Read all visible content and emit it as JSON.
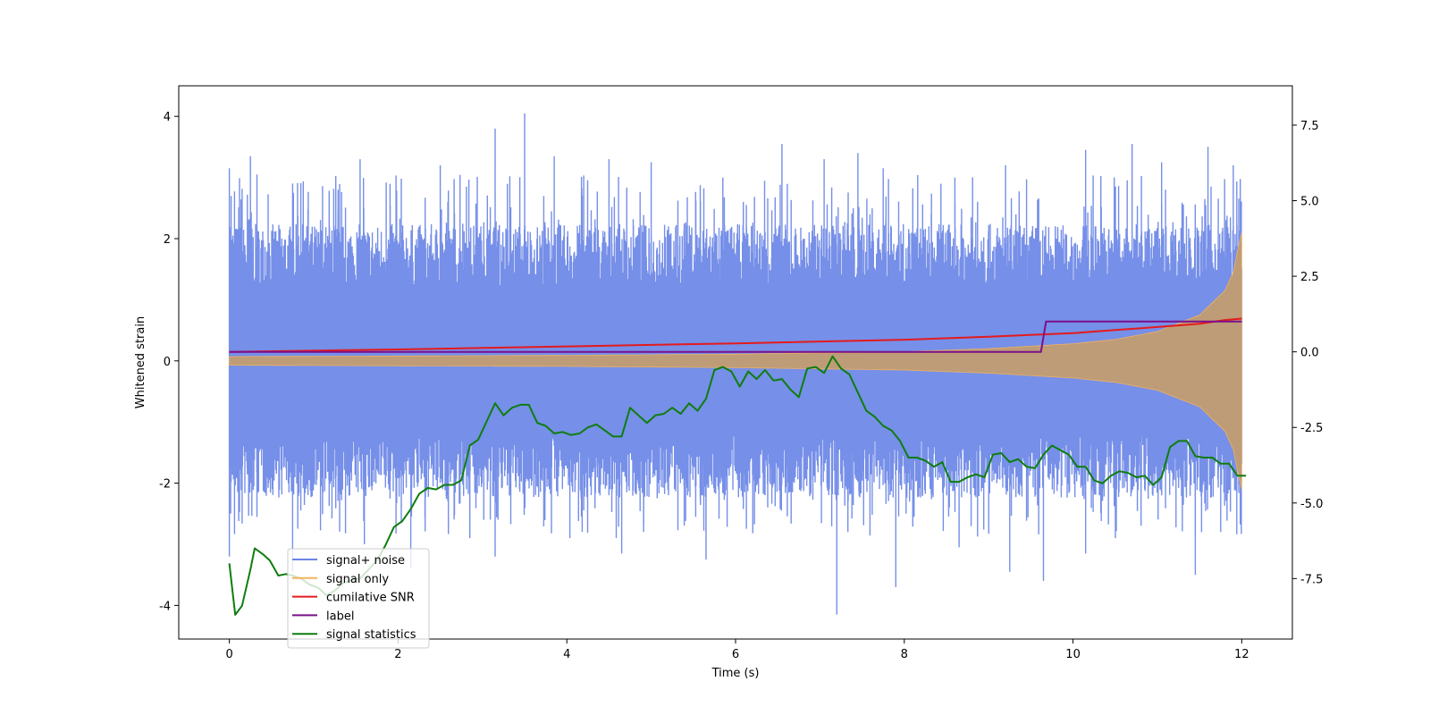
{
  "chart_data": {
    "type": "line",
    "xlabel": "Time (s)",
    "ylabel": "Whitened strain",
    "ylabel_right": "",
    "xlim": [
      -0.6,
      12.6
    ],
    "ylim": [
      -4.55,
      4.5
    ],
    "ylim_right": [
      -9.5,
      8.8
    ],
    "x_ticks": [
      "0",
      "2",
      "4",
      "6",
      "8",
      "10",
      "12"
    ],
    "y_ticks": [
      "-4",
      "-2",
      "0",
      "2",
      "4"
    ],
    "y_right_ticks": [
      "-7.5",
      "-5.0",
      "-2.5",
      "0.0",
      "2.5",
      "5.0",
      "7.5"
    ],
    "legend_position": "lower-left",
    "series": [
      {
        "name": "signal+ noise",
        "color": "#6a85e6",
        "kind": "noise_band",
        "axis": "left",
        "x_range": [
          0,
          12
        ],
        "band_upper_typical": 1.6,
        "band_lower_typical": -1.6,
        "peaks": [
          [
            0.0,
            3.15
          ],
          [
            0.25,
            3.35
          ],
          [
            0.75,
            2.9
          ],
          [
            1.55,
            3.3
          ],
          [
            2.5,
            3.2
          ],
          [
            3.15,
            3.8
          ],
          [
            3.5,
            4.05
          ],
          [
            3.85,
            3.35
          ],
          [
            4.5,
            3.3
          ],
          [
            5.0,
            3.25
          ],
          [
            5.85,
            3.0
          ],
          [
            6.55,
            3.55
          ],
          [
            7.05,
            3.3
          ],
          [
            7.45,
            3.4
          ],
          [
            7.75,
            3.15
          ],
          [
            8.6,
            3.0
          ],
          [
            9.2,
            3.2
          ],
          [
            10.15,
            3.45
          ],
          [
            10.7,
            3.55
          ],
          [
            11.05,
            3.25
          ],
          [
            11.6,
            3.5
          ],
          [
            11.9,
            3.2
          ]
        ],
        "troughs": [
          [
            0.0,
            -3.2
          ],
          [
            0.75,
            -3.45
          ],
          [
            1.6,
            -3.0
          ],
          [
            2.15,
            -3.4
          ],
          [
            2.85,
            -2.9
          ],
          [
            3.15,
            -3.2
          ],
          [
            4.65,
            -3.15
          ],
          [
            5.65,
            -3.25
          ],
          [
            7.2,
            -4.15
          ],
          [
            7.9,
            -3.7
          ],
          [
            8.65,
            -3.05
          ],
          [
            9.25,
            -3.45
          ],
          [
            9.65,
            -3.6
          ],
          [
            10.15,
            -3.15
          ],
          [
            11.45,
            -3.5
          ],
          [
            11.75,
            -2.8
          ]
        ]
      },
      {
        "name": "signal only",
        "color": "#f5b35c",
        "kind": "chirp_envelope",
        "axis": "left",
        "envelope": [
          [
            0.0,
            0.07
          ],
          [
            2.0,
            0.08
          ],
          [
            4.0,
            0.09
          ],
          [
            6.0,
            0.11
          ],
          [
            8.0,
            0.15
          ],
          [
            9.0,
            0.2
          ],
          [
            10.0,
            0.28
          ],
          [
            10.5,
            0.35
          ],
          [
            11.0,
            0.48
          ],
          [
            11.5,
            0.75
          ],
          [
            11.8,
            1.15
          ],
          [
            11.9,
            1.45
          ],
          [
            11.95,
            1.8
          ],
          [
            12.0,
            2.1
          ]
        ]
      },
      {
        "name": "cumilative SNR",
        "color": "#e41a1c",
        "axis": "right",
        "points": [
          [
            0.0,
            0.0
          ],
          [
            2.0,
            0.08
          ],
          [
            4.0,
            0.18
          ],
          [
            6.0,
            0.28
          ],
          [
            8.0,
            0.4
          ],
          [
            9.0,
            0.5
          ],
          [
            10.0,
            0.62
          ],
          [
            10.5,
            0.72
          ],
          [
            11.0,
            0.82
          ],
          [
            11.5,
            0.93
          ],
          [
            11.8,
            1.05
          ],
          [
            12.0,
            1.1
          ]
        ]
      },
      {
        "name": "label",
        "color": "#7b0f8a",
        "axis": "right",
        "points": [
          [
            0.0,
            0.0
          ],
          [
            9.62,
            0.0
          ],
          [
            9.68,
            1.0
          ],
          [
            12.0,
            1.0
          ]
        ]
      },
      {
        "name": "signal statistics",
        "color": "#0e7d0e",
        "axis": "right",
        "points": [
          [
            0.0,
            -7.0
          ],
          [
            0.07,
            -8.7
          ],
          [
            0.15,
            -8.4
          ],
          [
            0.25,
            -7.2
          ],
          [
            0.3,
            -6.5
          ],
          [
            0.4,
            -6.7
          ],
          [
            0.48,
            -6.9
          ],
          [
            0.58,
            -7.4
          ],
          [
            0.67,
            -7.35
          ],
          [
            0.75,
            -7.4
          ],
          [
            0.85,
            -7.5
          ],
          [
            0.95,
            -7.7
          ],
          [
            1.05,
            -7.8
          ],
          [
            1.15,
            -8.05
          ],
          [
            1.25,
            -7.9
          ],
          [
            1.35,
            -7.65
          ],
          [
            1.45,
            -7.55
          ],
          [
            1.55,
            -7.5
          ],
          [
            1.65,
            -7.2
          ],
          [
            1.75,
            -6.9
          ],
          [
            1.85,
            -6.4
          ],
          [
            1.95,
            -5.8
          ],
          [
            2.05,
            -5.6
          ],
          [
            2.15,
            -5.2
          ],
          [
            2.25,
            -4.7
          ],
          [
            2.35,
            -4.5
          ],
          [
            2.45,
            -4.55
          ],
          [
            2.55,
            -4.4
          ],
          [
            2.65,
            -4.4
          ],
          [
            2.75,
            -4.25
          ],
          [
            2.85,
            -3.1
          ],
          [
            2.95,
            -2.9
          ],
          [
            3.05,
            -2.3
          ],
          [
            3.15,
            -1.7
          ],
          [
            3.25,
            -2.1
          ],
          [
            3.35,
            -1.85
          ],
          [
            3.45,
            -1.75
          ],
          [
            3.55,
            -1.75
          ],
          [
            3.65,
            -2.35
          ],
          [
            3.75,
            -2.45
          ],
          [
            3.85,
            -2.7
          ],
          [
            3.95,
            -2.65
          ],
          [
            4.05,
            -2.75
          ],
          [
            4.15,
            -2.7
          ],
          [
            4.25,
            -2.5
          ],
          [
            4.35,
            -2.4
          ],
          [
            4.45,
            -2.6
          ],
          [
            4.55,
            -2.8
          ],
          [
            4.65,
            -2.8
          ],
          [
            4.75,
            -1.85
          ],
          [
            4.85,
            -2.1
          ],
          [
            4.95,
            -2.35
          ],
          [
            5.05,
            -2.1
          ],
          [
            5.15,
            -2.05
          ],
          [
            5.25,
            -1.85
          ],
          [
            5.35,
            -2.05
          ],
          [
            5.45,
            -1.7
          ],
          [
            5.55,
            -1.95
          ],
          [
            5.65,
            -1.55
          ],
          [
            5.75,
            -0.6
          ],
          [
            5.85,
            -0.5
          ],
          [
            5.95,
            -0.65
          ],
          [
            6.05,
            -1.15
          ],
          [
            6.15,
            -0.65
          ],
          [
            6.25,
            -0.9
          ],
          [
            6.35,
            -0.6
          ],
          [
            6.45,
            -0.95
          ],
          [
            6.55,
            -0.9
          ],
          [
            6.65,
            -1.25
          ],
          [
            6.75,
            -1.5
          ],
          [
            6.85,
            -0.55
          ],
          [
            6.95,
            -0.5
          ],
          [
            7.05,
            -0.7
          ],
          [
            7.15,
            -0.15
          ],
          [
            7.25,
            -0.55
          ],
          [
            7.35,
            -0.75
          ],
          [
            7.45,
            -1.35
          ],
          [
            7.55,
            -1.95
          ],
          [
            7.65,
            -2.15
          ],
          [
            7.75,
            -2.45
          ],
          [
            7.85,
            -2.6
          ],
          [
            7.95,
            -2.95
          ],
          [
            8.05,
            -3.5
          ],
          [
            8.15,
            -3.5
          ],
          [
            8.25,
            -3.6
          ],
          [
            8.35,
            -3.8
          ],
          [
            8.45,
            -3.65
          ],
          [
            8.55,
            -4.3
          ],
          [
            8.65,
            -4.3
          ],
          [
            8.75,
            -4.15
          ],
          [
            8.85,
            -4.05
          ],
          [
            8.95,
            -4.15
          ],
          [
            9.05,
            -3.4
          ],
          [
            9.15,
            -3.35
          ],
          [
            9.25,
            -3.65
          ],
          [
            9.35,
            -3.55
          ],
          [
            9.45,
            -3.8
          ],
          [
            9.55,
            -3.85
          ],
          [
            9.65,
            -3.4
          ],
          [
            9.75,
            -3.1
          ],
          [
            9.85,
            -3.25
          ],
          [
            9.95,
            -3.4
          ],
          [
            10.05,
            -3.8
          ],
          [
            10.15,
            -3.8
          ],
          [
            10.25,
            -4.25
          ],
          [
            10.35,
            -4.35
          ],
          [
            10.45,
            -4.1
          ],
          [
            10.55,
            -3.95
          ],
          [
            10.65,
            -4.0
          ],
          [
            10.75,
            -4.15
          ],
          [
            10.85,
            -4.1
          ],
          [
            10.95,
            -4.4
          ],
          [
            11.05,
            -4.15
          ],
          [
            11.15,
            -3.15
          ],
          [
            11.25,
            -2.95
          ],
          [
            11.35,
            -2.95
          ],
          [
            11.45,
            -3.45
          ],
          [
            11.55,
            -3.5
          ],
          [
            11.65,
            -3.5
          ],
          [
            11.75,
            -3.7
          ],
          [
            11.85,
            -3.7
          ],
          [
            11.95,
            -4.1
          ],
          [
            12.05,
            -4.1
          ]
        ]
      }
    ]
  }
}
